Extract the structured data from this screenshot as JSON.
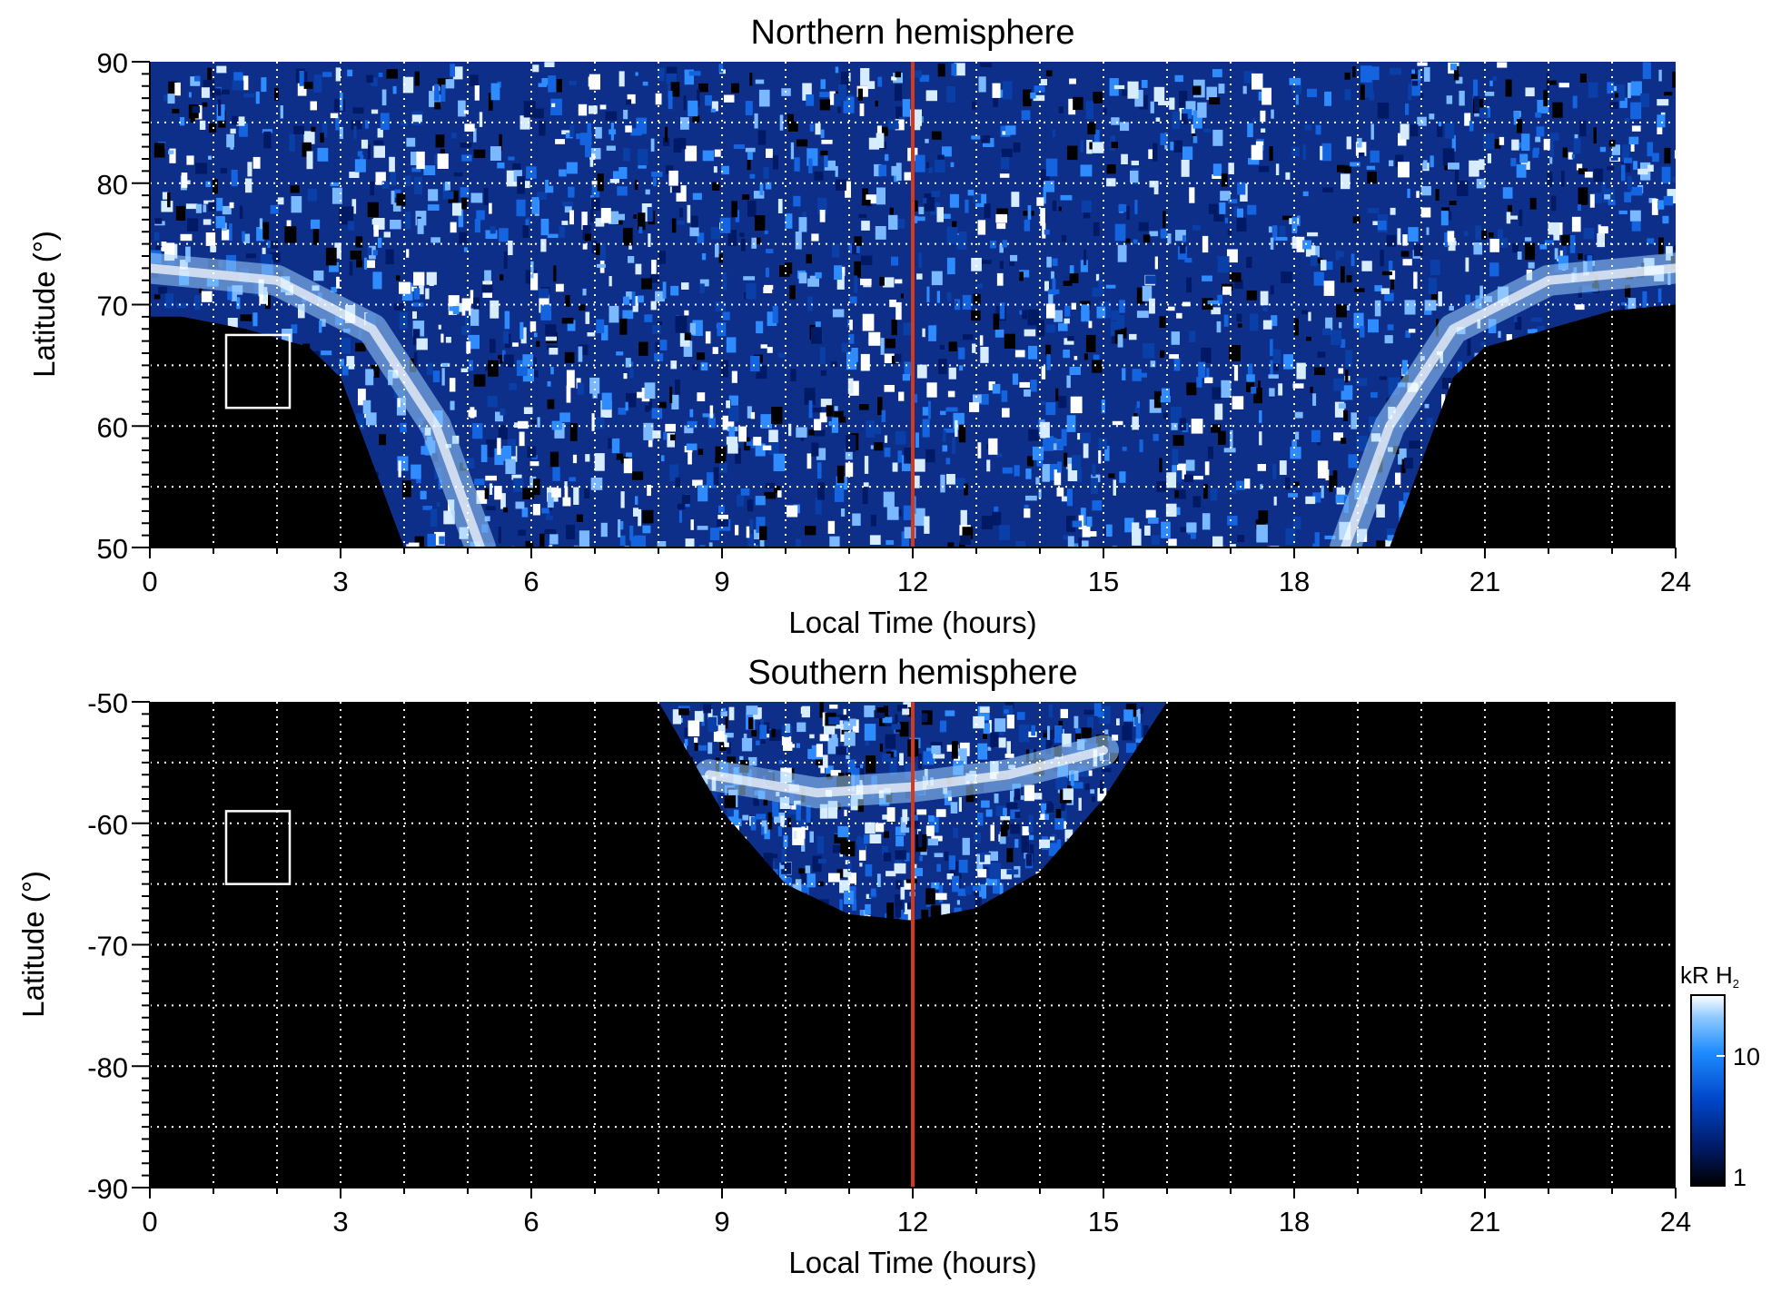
{
  "chart_data": [
    {
      "type": "heatmap",
      "title": "Northern hemisphere",
      "xlabel": "Local Time (hours)",
      "ylabel": "Latitude (°)",
      "xlim": [
        0,
        24
      ],
      "ylim": [
        50,
        90
      ],
      "x_ticks": [
        0,
        3,
        6,
        9,
        12,
        15,
        18,
        21,
        24
      ],
      "x_tick_labels": [
        "0",
        "3",
        "6",
        "9",
        "12",
        "15",
        "18",
        "21",
        "24"
      ],
      "y_ticks": [
        50,
        60,
        70,
        80,
        90
      ],
      "y_tick_labels": [
        "50",
        "60",
        "70",
        "80",
        "90"
      ],
      "grid": true,
      "grid_x_step": 1,
      "grid_y_step": 5,
      "coverage_boundary": [
        [
          0,
          69
        ],
        [
          0.5,
          69
        ],
        [
          1.5,
          68
        ],
        [
          2.5,
          66.5
        ],
        [
          3,
          64
        ],
        [
          3.5,
          57
        ],
        [
          4,
          50
        ],
        [
          19.5,
          50
        ],
        [
          20,
          57
        ],
        [
          20.5,
          64
        ],
        [
          21,
          66.5
        ],
        [
          22,
          68
        ],
        [
          23,
          69.5
        ],
        [
          24,
          70
        ]
      ],
      "auroral_oval": [
        [
          0,
          73
        ],
        [
          2,
          72
        ],
        [
          3.5,
          68
        ],
        [
          4.5,
          60
        ],
        [
          5.2,
          50
        ]
      ],
      "auroral_oval_dusk": [
        [
          18.8,
          50
        ],
        [
          19.5,
          60
        ],
        [
          20.5,
          68
        ],
        [
          22,
          72
        ],
        [
          24,
          73
        ]
      ],
      "box": {
        "x": [
          1.2,
          2.2
        ],
        "y": [
          61.5,
          67.5
        ]
      },
      "reference_line_x": 12,
      "reference_line_color": "#d33a1c"
    },
    {
      "type": "heatmap",
      "title": "Southern hemisphere",
      "xlabel": "Local Time (hours)",
      "ylabel": "Latitude (°)",
      "xlim": [
        0,
        24
      ],
      "ylim": [
        -90,
        -50
      ],
      "x_ticks": [
        0,
        3,
        6,
        9,
        12,
        15,
        18,
        21,
        24
      ],
      "x_tick_labels": [
        "0",
        "3",
        "6",
        "9",
        "12",
        "15",
        "18",
        "21",
        "24"
      ],
      "y_ticks": [
        -90,
        -80,
        -70,
        -60,
        -50
      ],
      "y_tick_labels": [
        "-90",
        "-80",
        "-70",
        "-60",
        "-50"
      ],
      "grid": true,
      "grid_x_step": 1,
      "grid_y_step": 5,
      "coverage_boundary": [
        [
          8,
          -50
        ],
        [
          9,
          -59
        ],
        [
          10,
          -65
        ],
        [
          11,
          -67.5
        ],
        [
          12,
          -68
        ],
        [
          13,
          -67
        ],
        [
          14,
          -64
        ],
        [
          15,
          -58
        ],
        [
          16,
          -50
        ]
      ],
      "auroral_oval": [
        [
          8.8,
          -56
        ],
        [
          10.5,
          -57.5
        ],
        [
          12,
          -57
        ],
        [
          13.5,
          -56
        ],
        [
          15,
          -54
        ]
      ],
      "box": {
        "x": [
          1.2,
          2.2
        ],
        "y": [
          -65,
          -59
        ]
      },
      "reference_line_x": 12,
      "reference_line_color": "#d33a1c"
    }
  ],
  "colorbar": {
    "title_main": "kR H",
    "title_sub": "2",
    "scale": "log",
    "range": [
      1,
      20
    ],
    "tick_labels": [
      "10",
      "1"
    ],
    "tick_values": [
      10,
      1
    ],
    "colors": [
      "#000000",
      "#001a66",
      "#0046c8",
      "#1e8cff",
      "#8cc8ff",
      "#ffffff"
    ]
  }
}
